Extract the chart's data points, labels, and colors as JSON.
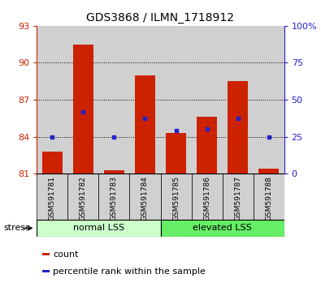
{
  "title": "GDS3868 / ILMN_1718912",
  "categories": [
    "GSM591781",
    "GSM591782",
    "GSM591783",
    "GSM591784",
    "GSM591785",
    "GSM591786",
    "GSM591787",
    "GSM591788"
  ],
  "bar_values": [
    82.8,
    91.5,
    81.3,
    89.0,
    84.3,
    85.6,
    88.5,
    81.4
  ],
  "bar_base": 81,
  "percentile_values": [
    84.0,
    86.0,
    84.0,
    85.5,
    84.5,
    84.6,
    85.5,
    84.0
  ],
  "bar_color": "#cc2200",
  "percentile_color": "#2222cc",
  "ylim_left": [
    81,
    93
  ],
  "yticks_left": [
    81,
    84,
    87,
    90,
    93
  ],
  "ylim_right": [
    0,
    100
  ],
  "yticks_right": [
    0,
    25,
    50,
    75,
    100
  ],
  "ytick_labels_right": [
    "0",
    "25",
    "50",
    "75",
    "100%"
  ],
  "ytick_labels_left": [
    "81",
    "84",
    "87",
    "90",
    "93"
  ],
  "group1_label": "normal LSS",
  "group2_label": "elevated LSS",
  "group1_color": "#ccffcc",
  "group2_color": "#66ee66",
  "stress_label": "stress",
  "legend_count_label": "count",
  "legend_percentile_label": "percentile rank within the sample",
  "left_tick_color": "#cc2200",
  "right_tick_color": "#2222cc",
  "bar_width": 0.65,
  "col_bg_color": "#d0d0d0",
  "white": "#ffffff",
  "black": "#000000",
  "grid_yticks": [
    84,
    87,
    90
  ]
}
